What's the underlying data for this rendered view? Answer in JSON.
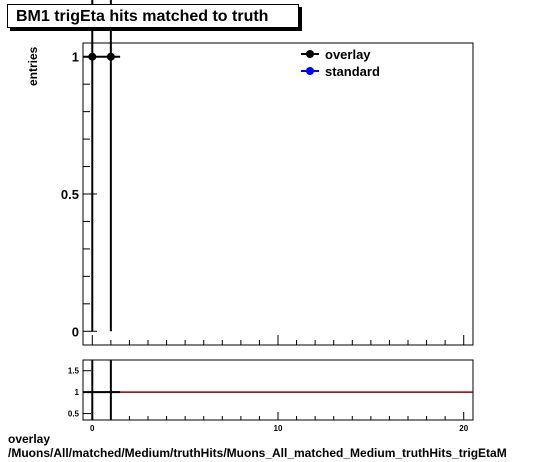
{
  "chart_data": [
    {
      "type": "line",
      "title": "BM1 trigEta hits matched to truth",
      "ylabel": "entries",
      "xlim": [
        -0.5,
        20.5
      ],
      "ylim": [
        -0.05,
        1.05
      ],
      "y_ticks": [
        0,
        0.5,
        1
      ],
      "y_tick_labels": [
        "0",
        "0.5",
        "1"
      ],
      "legend_position": "top-right",
      "grid": false,
      "series": [
        {
          "name": "overlay",
          "color": "#000000",
          "marker": "circle",
          "points": [
            {
              "x": 0,
              "y": 1,
              "yerr": 1
            },
            {
              "x": 1,
              "y": 1,
              "yerr": 1
            }
          ]
        },
        {
          "name": "standard",
          "color": "#0000ff",
          "marker": "circle",
          "points": []
        }
      ]
    },
    {
      "type": "line",
      "xlim": [
        -0.5,
        20.5
      ],
      "ylim": [
        0.35,
        1.75
      ],
      "x_ticks": [
        0,
        10,
        20
      ],
      "x_tick_labels": [
        "0",
        "10",
        "20"
      ],
      "y_ticks": [
        0.5,
        1,
        1.5
      ],
      "y_tick_labels": [
        "0.5",
        "1",
        "1.5"
      ],
      "reference_line": {
        "y": 1,
        "color": "#8b0000"
      },
      "series": [
        {
          "name": "ratio",
          "color": "#000000",
          "points": [
            {
              "x": 0,
              "y": 1
            },
            {
              "x": 1,
              "y": 1
            }
          ]
        }
      ]
    }
  ],
  "footer": {
    "line1": "overlay",
    "line2": "/Muons/All/matched/Medium/truthHits/Muons_All_matched_Medium_truthHits_trigEtaM"
  }
}
